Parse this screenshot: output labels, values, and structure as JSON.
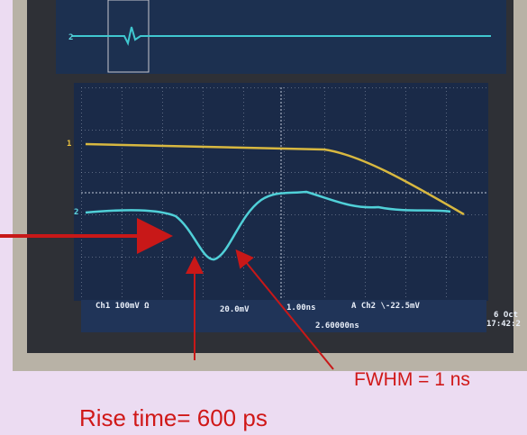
{
  "scope": {
    "ch1_marker": "1",
    "ch2_marker": "2",
    "ch1_scale": "Ch1  100mV Ω",
    "ch2_scale": "20.0mV",
    "timebase": "1.00ns",
    "trigger": "A  Ch2  \\-22.5mV",
    "position": "2.60000ns",
    "date": "6 Oct",
    "time": "17:42:2"
  },
  "annotations": {
    "fwhm": "FWHM = 1 ns",
    "rise_time": "Rise time= 600 ps"
  }
}
